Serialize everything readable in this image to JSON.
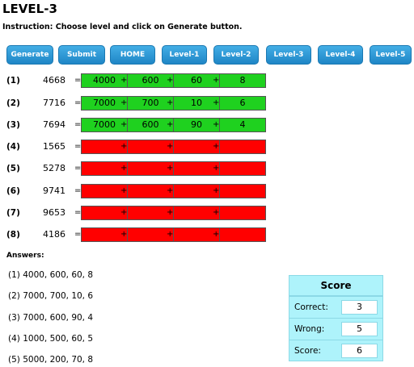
{
  "page": {
    "title": "LEVEL-3",
    "instruction": "Instruction: Choose level and click on Generate button."
  },
  "buttons": [
    "Generate",
    "Submit",
    "HOME",
    "Level-1",
    "Level-2",
    "Level-3",
    "Level-4",
    "Level-5"
  ],
  "equals_sign": "=",
  "plus_sign": "+",
  "rows": [
    {
      "index": "(1)",
      "number": "4668",
      "status": "filled",
      "parts": [
        "4000",
        "600",
        "60",
        "8"
      ]
    },
    {
      "index": "(2)",
      "number": "7716",
      "status": "filled",
      "parts": [
        "7000",
        "700",
        "10",
        "6"
      ]
    },
    {
      "index": "(3)",
      "number": "7694",
      "status": "filled",
      "parts": [
        "7000",
        "600",
        "90",
        "4"
      ]
    },
    {
      "index": "(4)",
      "number": "1565",
      "status": "empty",
      "parts": [
        "",
        "",
        "",
        ""
      ]
    },
    {
      "index": "(5)",
      "number": "5278",
      "status": "empty",
      "parts": [
        "",
        "",
        "",
        ""
      ]
    },
    {
      "index": "(6)",
      "number": "9741",
      "status": "empty",
      "parts": [
        "",
        "",
        "",
        ""
      ]
    },
    {
      "index": "(7)",
      "number": "9653",
      "status": "empty",
      "parts": [
        "",
        "",
        "",
        ""
      ]
    },
    {
      "index": "(8)",
      "number": "4186",
      "status": "empty",
      "parts": [
        "",
        "",
        "",
        ""
      ]
    }
  ],
  "answers": {
    "label": "Answers:",
    "items": [
      "(1) 4000, 600, 60, 8",
      "(2) 7000, 700, 10, 6",
      "(3) 7000, 600, 90, 4",
      "(4) 1000, 500, 60, 5",
      "(5) 5000, 200, 70, 8"
    ]
  },
  "score": {
    "title": "Score",
    "correct_label": "Correct:",
    "correct": "3",
    "wrong_label": "Wrong:",
    "wrong": "5",
    "score_label": "Score:",
    "score": "6"
  },
  "colors": {
    "correct_fill": "#1fd11f",
    "empty_fill": "#ff0000",
    "button": "#2a95d6",
    "score_panel": "#aef3fb"
  }
}
